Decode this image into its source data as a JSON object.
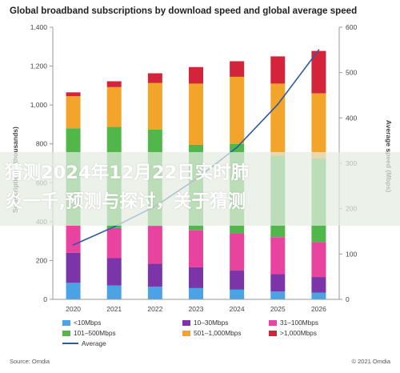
{
  "title": "Global broadband subscriptions by download speed and global average speed",
  "source": "Source: Omdia",
  "copyright": "© 2021 Omdia",
  "watermark": {
    "line1": "猜测2024年12月22日实时肺",
    "line2": "炎一千,预测与探讨，关于猜测"
  },
  "colors": {
    "<10Mbps": "#4ba3e6",
    "10–30Mbps": "#7b35a8",
    "31–100Mbps": "#e8449f",
    "101–500Mbps": "#51b74a",
    "501–1,000Mbps": "#f2a52a",
    ">1,000Mbps": "#d3243c",
    "Average": "#2d5c9e"
  },
  "chart_data": {
    "type": "bar",
    "stacked": true,
    "categories": [
      "2020",
      "2021",
      "2022",
      "2023",
      "2024",
      "2025",
      "2026"
    ],
    "series": [
      {
        "name": "<10Mbps",
        "values": [
          85,
          72,
          65,
          58,
          50,
          40,
          35
        ]
      },
      {
        "name": "10–30Mbps",
        "values": [
          155,
          140,
          118,
          107,
          98,
          90,
          80
        ]
      },
      {
        "name": "31–100Mbps",
        "values": [
          140,
          155,
          195,
          190,
          192,
          190,
          180
        ]
      },
      {
        "name": "101–500Mbps",
        "values": [
          500,
          520,
          495,
          440,
          460,
          420,
          430
        ]
      },
      {
        "name": "501–1,000Mbps",
        "values": [
          165,
          205,
          240,
          315,
          345,
          370,
          335
        ]
      },
      {
        "name": ">1,000Mbps",
        "values": [
          20,
          30,
          50,
          85,
          80,
          140,
          218
        ]
      }
    ],
    "line_series": {
      "name": "Average",
      "axis": "right",
      "values": [
        120,
        160,
        205,
        265,
        335,
        430,
        550
      ]
    },
    "ylabel_left": "Subscriptions (thousands)",
    "ylabel_right": "Average speed (Mbps)",
    "ylim_left": [
      0,
      1400
    ],
    "ylim_right": [
      0,
      600
    ],
    "yticks_left": [
      "0",
      "200",
      "400",
      "600",
      "800",
      "1,000",
      "1,200",
      "1,400"
    ],
    "yticks_right": [
      "0",
      "100",
      "200",
      "300",
      "400",
      "500",
      "600"
    ],
    "grid": false,
    "legend_position": "bottom"
  }
}
